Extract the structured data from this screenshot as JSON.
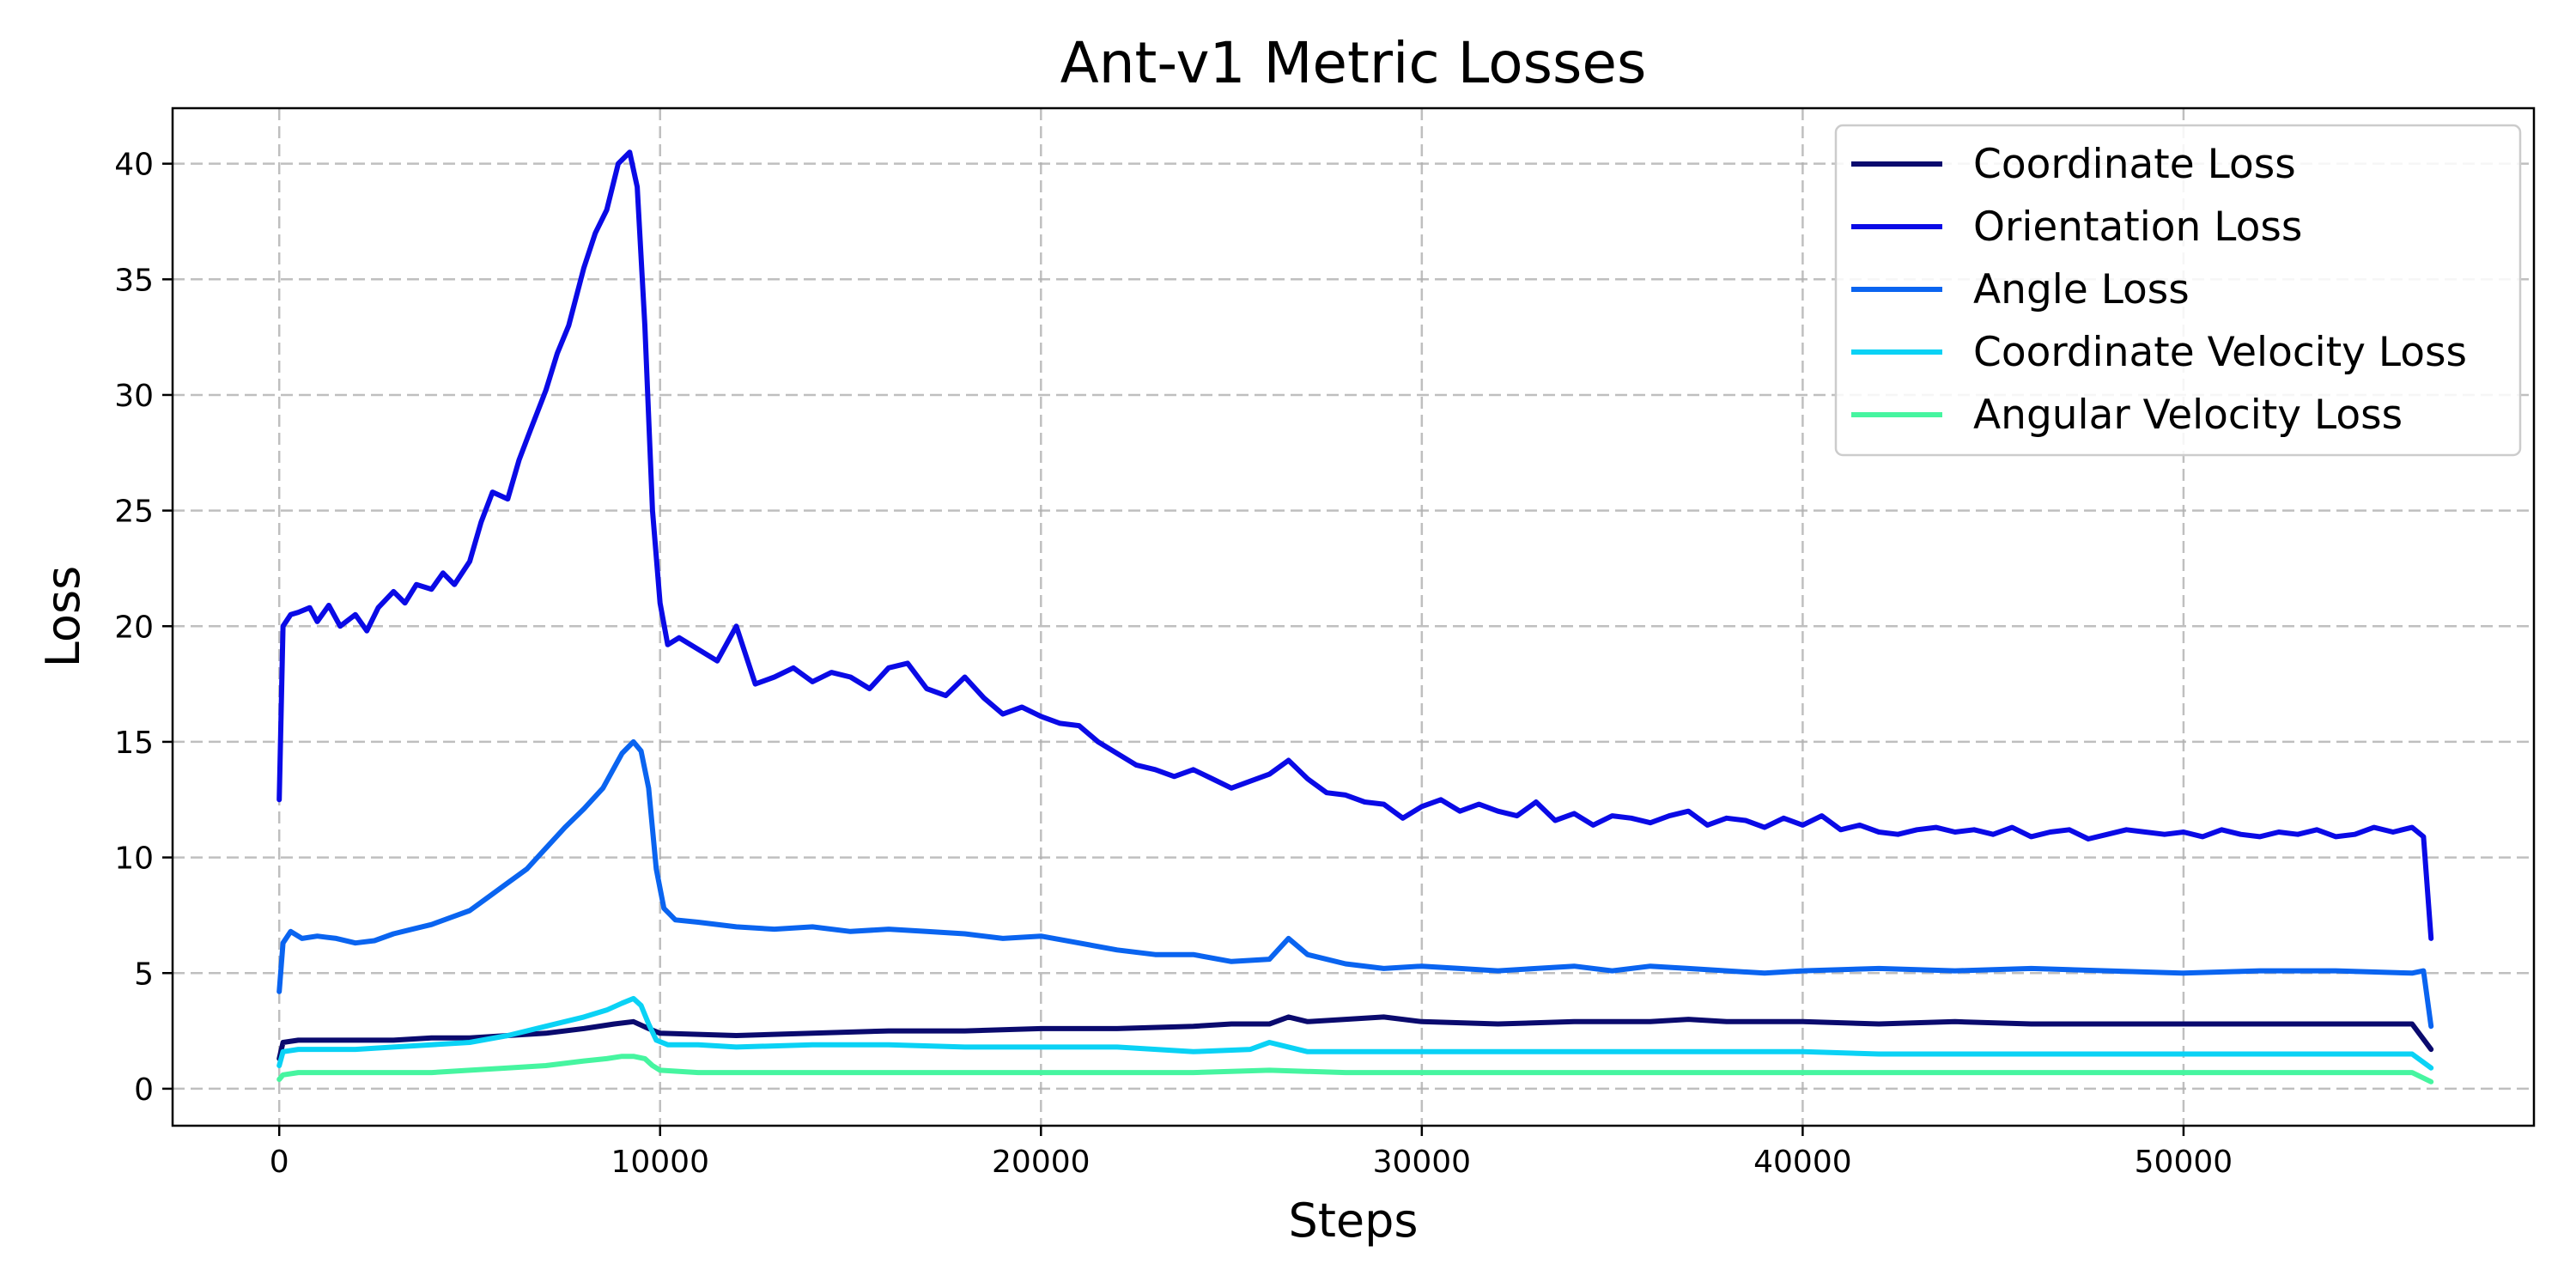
{
  "chart_data": {
    "type": "line",
    "title": "Ant-v1 Metric Losses",
    "xlabel": "Steps",
    "ylabel": "Loss",
    "xlim": [
      -2800,
      59200
    ],
    "ylim": [
      -1.6,
      42.4
    ],
    "xticks": [
      0,
      10000,
      20000,
      30000,
      40000,
      50000
    ],
    "yticks": [
      0,
      5,
      10,
      15,
      20,
      25,
      30,
      35,
      40
    ],
    "grid": true,
    "legend_position": "top-right",
    "series": [
      {
        "name": "Coordinate Loss",
        "color": "#0a0a6e",
        "x": [
          0,
          100,
          500,
          1000,
          2000,
          3000,
          4000,
          5000,
          6000,
          7000,
          8000,
          8800,
          9300,
          9700,
          10000,
          12000,
          14000,
          16000,
          18000,
          20000,
          22000,
          24000,
          25000,
          26000,
          26500,
          27000,
          28000,
          29000,
          30000,
          32000,
          34000,
          36000,
          37000,
          38000,
          40000,
          42000,
          44000,
          46000,
          48000,
          50000,
          52000,
          54000,
          56000,
          56500
        ],
        "y": [
          1.3,
          2.0,
          2.1,
          2.1,
          2.1,
          2.1,
          2.2,
          2.2,
          2.3,
          2.4,
          2.6,
          2.8,
          2.9,
          2.6,
          2.4,
          2.3,
          2.4,
          2.5,
          2.5,
          2.6,
          2.6,
          2.7,
          2.8,
          2.8,
          3.1,
          2.9,
          3.0,
          3.1,
          2.9,
          2.8,
          2.9,
          2.9,
          3.0,
          2.9,
          2.9,
          2.8,
          2.9,
          2.8,
          2.8,
          2.8,
          2.8,
          2.8,
          2.8,
          1.7
        ]
      },
      {
        "name": "Orientation Loss",
        "color": "#0a0ae6",
        "x": [
          0,
          100,
          300,
          500,
          800,
          1000,
          1300,
          1600,
          2000,
          2300,
          2600,
          3000,
          3300,
          3600,
          4000,
          4300,
          4600,
          5000,
          5300,
          5600,
          6000,
          6300,
          6600,
          7000,
          7300,
          7600,
          8000,
          8300,
          8600,
          8900,
          9200,
          9400,
          9600,
          9800,
          10000,
          10200,
          10500,
          11000,
          11500,
          12000,
          12500,
          13000,
          13500,
          14000,
          14500,
          15000,
          15500,
          16000,
          16500,
          17000,
          17500,
          18000,
          18500,
          19000,
          19500,
          20000,
          20500,
          21000,
          21500,
          22000,
          22500,
          23000,
          23500,
          24000,
          24500,
          25000,
          25500,
          26000,
          26500,
          27000,
          27500,
          28000,
          28500,
          29000,
          29500,
          30000,
          30500,
          31000,
          31500,
          32000,
          32500,
          33000,
          33500,
          34000,
          34500,
          35000,
          35500,
          36000,
          36500,
          37000,
          37500,
          38000,
          38500,
          39000,
          39500,
          40000,
          40500,
          41000,
          41500,
          42000,
          42500,
          43000,
          43500,
          44000,
          44500,
          45000,
          45500,
          46000,
          46500,
          47000,
          47500,
          48000,
          48500,
          49000,
          49500,
          50000,
          50500,
          51000,
          51500,
          52000,
          52500,
          53000,
          53500,
          54000,
          54500,
          55000,
          55500,
          56000,
          56300,
          56500
        ],
        "y": [
          12.5,
          20.0,
          20.5,
          20.6,
          20.8,
          20.2,
          20.9,
          20.0,
          20.5,
          19.8,
          20.8,
          21.5,
          21.0,
          21.8,
          21.6,
          22.3,
          21.8,
          22.8,
          24.5,
          25.8,
          25.5,
          27.2,
          28.5,
          30.2,
          31.8,
          33.0,
          35.5,
          37.0,
          38.0,
          40.0,
          40.5,
          39.0,
          33.0,
          25.0,
          21.0,
          19.2,
          19.5,
          19.0,
          18.5,
          20.0,
          17.5,
          17.8,
          18.2,
          17.6,
          18.0,
          17.8,
          17.3,
          18.2,
          18.4,
          17.3,
          17.0,
          17.8,
          16.9,
          16.2,
          16.5,
          16.1,
          15.8,
          15.7,
          15.0,
          14.5,
          14.0,
          13.8,
          13.5,
          13.8,
          13.4,
          13.0,
          13.3,
          13.6,
          14.2,
          13.4,
          12.8,
          12.7,
          12.4,
          12.3,
          11.7,
          12.2,
          12.5,
          12.0,
          12.3,
          12.0,
          11.8,
          12.4,
          11.6,
          11.9,
          11.4,
          11.8,
          11.7,
          11.5,
          11.8,
          12.0,
          11.4,
          11.7,
          11.6,
          11.3,
          11.7,
          11.4,
          11.8,
          11.2,
          11.4,
          11.1,
          11.0,
          11.2,
          11.3,
          11.1,
          11.2,
          11.0,
          11.3,
          10.9,
          11.1,
          11.2,
          10.8,
          11.0,
          11.2,
          11.1,
          11.0,
          11.1,
          10.9,
          11.2,
          11.0,
          10.9,
          11.1,
          11.0,
          11.2,
          10.9,
          11.0,
          11.3,
          11.1,
          11.3,
          10.9,
          6.5
        ]
      },
      {
        "name": "Angle Loss",
        "color": "#0a64f0",
        "x": [
          0,
          100,
          300,
          600,
          1000,
          1500,
          2000,
          2500,
          3000,
          3500,
          4000,
          4500,
          5000,
          5500,
          6000,
          6500,
          7000,
          7500,
          8000,
          8500,
          9000,
          9300,
          9500,
          9700,
          9900,
          10100,
          10400,
          11000,
          12000,
          13000,
          14000,
          15000,
          16000,
          17000,
          18000,
          19000,
          20000,
          21000,
          22000,
          23000,
          24000,
          25000,
          26000,
          26500,
          27000,
          28000,
          29000,
          30000,
          31000,
          32000,
          33000,
          34000,
          35000,
          36000,
          37000,
          38000,
          39000,
          40000,
          42000,
          44000,
          46000,
          48000,
          50000,
          52000,
          54000,
          56000,
          56300,
          56500
        ],
        "y": [
          4.2,
          6.3,
          6.8,
          6.5,
          6.6,
          6.5,
          6.3,
          6.4,
          6.7,
          6.9,
          7.1,
          7.4,
          7.7,
          8.3,
          8.9,
          9.5,
          10.4,
          11.3,
          12.1,
          13.0,
          14.5,
          15.0,
          14.6,
          13.0,
          9.5,
          7.8,
          7.3,
          7.2,
          7.0,
          6.9,
          7.0,
          6.8,
          6.9,
          6.8,
          6.7,
          6.5,
          6.6,
          6.3,
          6.0,
          5.8,
          5.8,
          5.5,
          5.6,
          6.5,
          5.8,
          5.4,
          5.2,
          5.3,
          5.2,
          5.1,
          5.2,
          5.3,
          5.1,
          5.3,
          5.2,
          5.1,
          5.0,
          5.1,
          5.2,
          5.1,
          5.2,
          5.1,
          5.0,
          5.1,
          5.1,
          5.0,
          5.1,
          2.7
        ]
      },
      {
        "name": "Coordinate Velocity Loss",
        "color": "#0ad2f5",
        "x": [
          0,
          100,
          500,
          1000,
          2000,
          3000,
          4000,
          5000,
          6000,
          7000,
          8000,
          8600,
          9000,
          9300,
          9500,
          9700,
          9900,
          10200,
          11000,
          12000,
          14000,
          16000,
          18000,
          20000,
          22000,
          24000,
          25500,
          26000,
          26500,
          27000,
          28000,
          30000,
          32000,
          34000,
          36000,
          38000,
          40000,
          42000,
          44000,
          46000,
          48000,
          50000,
          52000,
          54000,
          56000,
          56500
        ],
        "y": [
          1.0,
          1.6,
          1.7,
          1.7,
          1.7,
          1.8,
          1.9,
          2.0,
          2.3,
          2.7,
          3.1,
          3.4,
          3.7,
          3.9,
          3.6,
          2.8,
          2.1,
          1.9,
          1.9,
          1.8,
          1.9,
          1.9,
          1.8,
          1.8,
          1.8,
          1.6,
          1.7,
          2.0,
          1.8,
          1.6,
          1.6,
          1.6,
          1.6,
          1.6,
          1.6,
          1.6,
          1.6,
          1.5,
          1.5,
          1.5,
          1.5,
          1.5,
          1.5,
          1.5,
          1.5,
          0.9
        ]
      },
      {
        "name": "Angular Velocity Loss",
        "color": "#46f5a0",
        "x": [
          0,
          100,
          500,
          1000,
          2000,
          3000,
          4000,
          5000,
          6000,
          7000,
          8000,
          8600,
          9000,
          9300,
          9600,
          9800,
          10000,
          11000,
          12000,
          14000,
          16000,
          18000,
          20000,
          22000,
          24000,
          26000,
          28000,
          30000,
          32000,
          34000,
          36000,
          38000,
          40000,
          42000,
          44000,
          46000,
          48000,
          50000,
          52000,
          54000,
          56000,
          56500
        ],
        "y": [
          0.4,
          0.6,
          0.7,
          0.7,
          0.7,
          0.7,
          0.7,
          0.8,
          0.9,
          1.0,
          1.2,
          1.3,
          1.4,
          1.4,
          1.3,
          1.0,
          0.8,
          0.7,
          0.7,
          0.7,
          0.7,
          0.7,
          0.7,
          0.7,
          0.7,
          0.8,
          0.7,
          0.7,
          0.7,
          0.7,
          0.7,
          0.7,
          0.7,
          0.7,
          0.7,
          0.7,
          0.7,
          0.7,
          0.7,
          0.7,
          0.7,
          0.3
        ]
      }
    ]
  }
}
